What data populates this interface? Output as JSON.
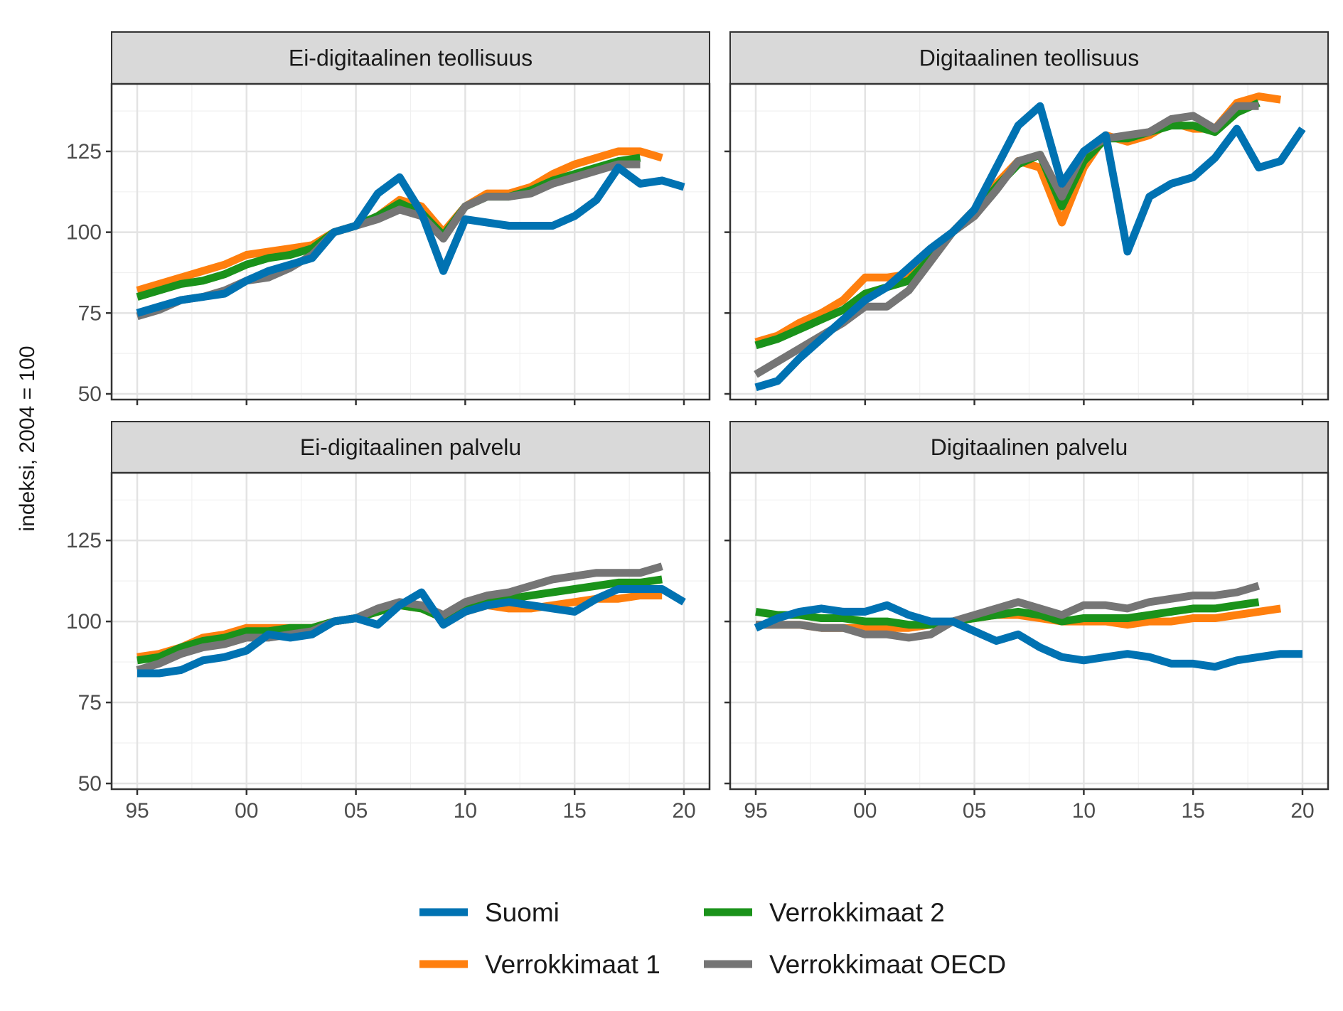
{
  "y_axis_label": "indeksi, 2004 = 100",
  "colors": {
    "Suomi": "#0072B2",
    "Verrokkimaat 1": "#FF7F0E",
    "Verrokkimaat 2": "#1A921A",
    "Verrokkimaat OECD": "#757575"
  },
  "legend": {
    "placement": "bottom",
    "items": [
      "Suomi",
      "Verrokkimaat 2",
      "Verrokkimaat 1",
      "Verrokkimaat OECD"
    ]
  },
  "chart_data": [
    {
      "type": "line",
      "title": "Ei-digitaalinen teollisuus",
      "ylabel": "indeksi, 2004 = 100",
      "xlim": [
        1995,
        2020
      ],
      "ylim": [
        50,
        145
      ],
      "x_ticks": [
        1995,
        2000,
        2005,
        2010,
        2015,
        2020
      ],
      "x_tick_labels": [
        "95",
        "00",
        "05",
        "10",
        "15",
        "20"
      ],
      "y_ticks": [
        50,
        75,
        100,
        125
      ],
      "grid": true,
      "series": [
        {
          "name": "Suomi",
          "x": [
            1995,
            1996,
            1997,
            1998,
            1999,
            2000,
            2001,
            2002,
            2003,
            2004,
            2005,
            2006,
            2007,
            2008,
            2009,
            2010,
            2011,
            2012,
            2013,
            2014,
            2015,
            2016,
            2017,
            2018,
            2019,
            2020
          ],
          "values": [
            75,
            77,
            79,
            80,
            81,
            85,
            88,
            90,
            92,
            100,
            102,
            112,
            117,
            106,
            88,
            104,
            103,
            102,
            102,
            102,
            105,
            110,
            120,
            115,
            116,
            114
          ]
        },
        {
          "name": "Verrokkimaat 1",
          "x": [
            1995,
            1996,
            1997,
            1998,
            1999,
            2000,
            2001,
            2002,
            2003,
            2004,
            2005,
            2006,
            2007,
            2008,
            2009,
            2010,
            2011,
            2012,
            2013,
            2014,
            2015,
            2016,
            2017,
            2018,
            2019
          ],
          "values": [
            82,
            84,
            86,
            88,
            90,
            93,
            94,
            95,
            96,
            100,
            102,
            105,
            110,
            108,
            100,
            108,
            112,
            112,
            114,
            118,
            121,
            123,
            125,
            125,
            123
          ]
        },
        {
          "name": "Verrokkimaat 2",
          "x": [
            1995,
            1996,
            1997,
            1998,
            1999,
            2000,
            2001,
            2002,
            2003,
            2004,
            2005,
            2006,
            2007,
            2008,
            2009,
            2010,
            2011,
            2012,
            2013,
            2014,
            2015,
            2016,
            2017,
            2018
          ],
          "values": [
            80,
            82,
            84,
            85,
            87,
            90,
            92,
            93,
            95,
            100,
            102,
            105,
            109,
            106,
            99,
            108,
            111,
            111,
            113,
            116,
            118,
            120,
            122,
            123
          ]
        },
        {
          "name": "Verrokkimaat OECD",
          "x": [
            1995,
            1996,
            1997,
            1998,
            1999,
            2000,
            2001,
            2002,
            2003,
            2004,
            2005,
            2006,
            2007,
            2008,
            2009,
            2010,
            2011,
            2012,
            2013,
            2014,
            2015,
            2016,
            2017,
            2018
          ],
          "values": [
            74,
            76,
            79,
            80,
            82,
            85,
            86,
            89,
            93,
            100,
            102,
            104,
            107,
            105,
            98,
            108,
            111,
            111,
            112,
            115,
            117,
            119,
            121,
            121
          ]
        }
      ]
    },
    {
      "type": "line",
      "title": "Digitaalinen teollisuus",
      "ylabel": "indeksi, 2004 = 100",
      "xlim": [
        1995,
        2020
      ],
      "ylim": [
        50,
        145
      ],
      "x_ticks": [
        1995,
        2000,
        2005,
        2010,
        2015,
        2020
      ],
      "x_tick_labels": [
        "95",
        "00",
        "05",
        "10",
        "15",
        "20"
      ],
      "y_ticks": [
        50,
        75,
        100,
        125
      ],
      "grid": true,
      "series": [
        {
          "name": "Suomi",
          "x": [
            1995,
            1996,
            1997,
            1998,
            1999,
            2000,
            2001,
            2002,
            2003,
            2004,
            2005,
            2006,
            2007,
            2008,
            2009,
            2010,
            2011,
            2012,
            2013,
            2014,
            2015,
            2016,
            2017,
            2018,
            2019,
            2020
          ],
          "values": [
            52,
            54,
            61,
            67,
            73,
            79,
            83,
            89,
            95,
            100,
            107,
            120,
            133,
            139,
            115,
            125,
            130,
            94,
            111,
            115,
            117,
            123,
            132,
            120,
            122,
            132
          ]
        },
        {
          "name": "Verrokkimaat 1",
          "x": [
            1995,
            1996,
            1997,
            1998,
            1999,
            2000,
            2001,
            2002,
            2003,
            2004,
            2005,
            2006,
            2007,
            2008,
            2009,
            2010,
            2011,
            2012,
            2013,
            2014,
            2015,
            2016,
            2017,
            2018,
            2019
          ],
          "values": [
            66,
            68,
            72,
            75,
            79,
            86,
            86,
            87,
            92,
            100,
            107,
            115,
            122,
            120,
            103,
            120,
            130,
            128,
            130,
            134,
            132,
            132,
            140,
            142,
            141
          ]
        },
        {
          "name": "Verrokkimaat 2",
          "x": [
            1995,
            1996,
            1997,
            1998,
            1999,
            2000,
            2001,
            2002,
            2003,
            2004,
            2005,
            2006,
            2007,
            2008,
            2009,
            2010,
            2011,
            2012,
            2013,
            2014,
            2015,
            2016,
            2017,
            2018
          ],
          "values": [
            65,
            67,
            70,
            73,
            76,
            81,
            83,
            85,
            92,
            100,
            106,
            114,
            121,
            124,
            108,
            122,
            129,
            129,
            131,
            133,
            133,
            131,
            137,
            140
          ]
        },
        {
          "name": "Verrokkimaat OECD",
          "x": [
            1995,
            1996,
            1997,
            1998,
            1999,
            2000,
            2001,
            2002,
            2003,
            2004,
            2005,
            2006,
            2007,
            2008,
            2009,
            2010,
            2011,
            2012,
            2013,
            2014,
            2015,
            2016,
            2017,
            2018
          ],
          "values": [
            56,
            60,
            64,
            68,
            72,
            77,
            77,
            82,
            91,
            100,
            105,
            113,
            122,
            124,
            111,
            125,
            129,
            130,
            131,
            135,
            136,
            132,
            139,
            139
          ]
        }
      ]
    },
    {
      "type": "line",
      "title": "Ei-digitaalinen palvelu",
      "ylabel": "indeksi, 2004 = 100",
      "xlim": [
        1995,
        2020
      ],
      "ylim": [
        50,
        145
      ],
      "x_ticks": [
        1995,
        2000,
        2005,
        2010,
        2015,
        2020
      ],
      "x_tick_labels": [
        "95",
        "00",
        "05",
        "10",
        "15",
        "20"
      ],
      "y_ticks": [
        50,
        75,
        100,
        125
      ],
      "grid": true,
      "series": [
        {
          "name": "Suomi",
          "x": [
            1995,
            1996,
            1997,
            1998,
            1999,
            2000,
            2001,
            2002,
            2003,
            2004,
            2005,
            2006,
            2007,
            2008,
            2009,
            2010,
            2011,
            2012,
            2013,
            2014,
            2015,
            2016,
            2017,
            2018,
            2019,
            2020
          ],
          "values": [
            84,
            84,
            85,
            88,
            89,
            91,
            96,
            95,
            96,
            100,
            101,
            99,
            105,
            109,
            99,
            103,
            105,
            106,
            105,
            104,
            103,
            107,
            110,
            110,
            110,
            106
          ]
        },
        {
          "name": "Verrokkimaat 1",
          "x": [
            1995,
            1996,
            1997,
            1998,
            1999,
            2000,
            2001,
            2002,
            2003,
            2004,
            2005,
            2006,
            2007,
            2008,
            2009,
            2010,
            2011,
            2012,
            2013,
            2014,
            2015,
            2016,
            2017,
            2018,
            2019
          ],
          "values": [
            89,
            90,
            92,
            95,
            96,
            98,
            98,
            98,
            98,
            100,
            101,
            103,
            105,
            104,
            101,
            103,
            105,
            104,
            104,
            105,
            106,
            107,
            107,
            108,
            108
          ]
        },
        {
          "name": "Verrokkimaat 2",
          "x": [
            1995,
            1996,
            1997,
            1998,
            1999,
            2000,
            2001,
            2002,
            2003,
            2004,
            2005,
            2006,
            2007,
            2008,
            2009,
            2010,
            2011,
            2012,
            2013,
            2014,
            2015,
            2016,
            2017,
            2018,
            2019
          ],
          "values": [
            88,
            89,
            92,
            94,
            95,
            97,
            97,
            98,
            98,
            100,
            101,
            103,
            105,
            104,
            101,
            104,
            106,
            107,
            108,
            109,
            110,
            111,
            112,
            112,
            113
          ]
        },
        {
          "name": "Verrokkimaat OECD",
          "x": [
            1995,
            1996,
            1997,
            1998,
            1999,
            2000,
            2001,
            2002,
            2003,
            2004,
            2005,
            2006,
            2007,
            2008,
            2009,
            2010,
            2011,
            2012,
            2013,
            2014,
            2015,
            2016,
            2017,
            2018,
            2019
          ],
          "values": [
            85,
            87,
            90,
            92,
            93,
            95,
            95,
            96,
            97,
            100,
            101,
            104,
            106,
            105,
            102,
            106,
            108,
            109,
            111,
            113,
            114,
            115,
            115,
            115,
            117
          ]
        }
      ]
    },
    {
      "type": "line",
      "title": "Digitaalinen palvelu",
      "ylabel": "indeksi, 2004 = 100",
      "xlim": [
        1995,
        2020
      ],
      "ylim": [
        50,
        145
      ],
      "x_ticks": [
        1995,
        2000,
        2005,
        2010,
        2015,
        2020
      ],
      "x_tick_labels": [
        "95",
        "00",
        "05",
        "10",
        "15",
        "20"
      ],
      "y_ticks": [
        50,
        75,
        100,
        125
      ],
      "grid": true,
      "series": [
        {
          "name": "Suomi",
          "x": [
            1995,
            1996,
            1997,
            1998,
            1999,
            2000,
            2001,
            2002,
            2003,
            2004,
            2005,
            2006,
            2007,
            2008,
            2009,
            2010,
            2011,
            2012,
            2013,
            2014,
            2015,
            2016,
            2017,
            2018,
            2019,
            2020
          ],
          "values": [
            98,
            101,
            103,
            104,
            103,
            103,
            105,
            102,
            100,
            100,
            97,
            94,
            96,
            92,
            89,
            88,
            89,
            90,
            89,
            87,
            87,
            86,
            88,
            89,
            90,
            90
          ]
        },
        {
          "name": "Verrokkimaat 1",
          "x": [
            1995,
            1996,
            1997,
            1998,
            1999,
            2000,
            2001,
            2002,
            2003,
            2004,
            2005,
            2006,
            2007,
            2008,
            2009,
            2010,
            2011,
            2012,
            2013,
            2014,
            2015,
            2016,
            2017,
            2018,
            2019
          ],
          "values": [
            99,
            99,
            99,
            98,
            98,
            98,
            98,
            98,
            99,
            100,
            101,
            102,
            102,
            101,
            100,
            100,
            100,
            99,
            100,
            100,
            101,
            101,
            102,
            103,
            104
          ]
        },
        {
          "name": "Verrokkimaat 2",
          "x": [
            1995,
            1996,
            1997,
            1998,
            1999,
            2000,
            2001,
            2002,
            2003,
            2004,
            2005,
            2006,
            2007,
            2008,
            2009,
            2010,
            2011,
            2012,
            2013,
            2014,
            2015,
            2016,
            2017,
            2018
          ],
          "values": [
            103,
            102,
            102,
            101,
            101,
            100,
            100,
            99,
            99,
            100,
            101,
            102,
            103,
            102,
            100,
            101,
            101,
            101,
            102,
            103,
            104,
            104,
            105,
            106
          ]
        },
        {
          "name": "Verrokkimaat OECD",
          "x": [
            1995,
            1996,
            1997,
            1998,
            1999,
            2000,
            2001,
            2002,
            2003,
            2004,
            2005,
            2006,
            2007,
            2008,
            2009,
            2010,
            2011,
            2012,
            2013,
            2014,
            2015,
            2016,
            2017,
            2018
          ],
          "values": [
            99,
            99,
            99,
            98,
            98,
            96,
            96,
            95,
            96,
            100,
            102,
            104,
            106,
            104,
            102,
            105,
            105,
            104,
            106,
            107,
            108,
            108,
            109,
            111
          ]
        }
      ]
    }
  ]
}
